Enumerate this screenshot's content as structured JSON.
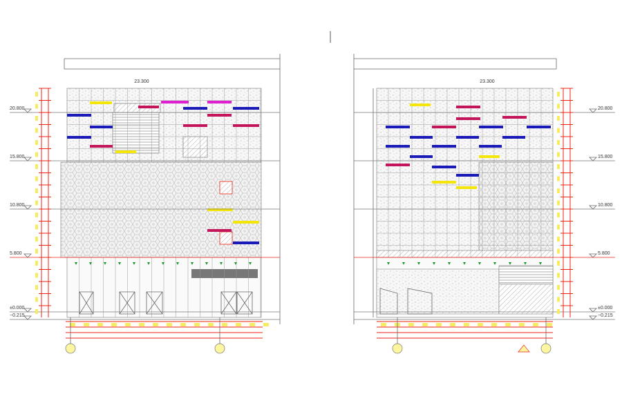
{
  "left_elevation": {
    "top_level": "23.300",
    "levels": [
      "20.800",
      "15.800",
      "10.800",
      "5.800",
      "±0.000",
      "−0.215"
    ]
  },
  "right_elevation": {
    "top_level": "23.300",
    "levels": [
      "20.800",
      "15.800",
      "10.800",
      "5.800",
      "±0.000",
      "−0.215"
    ]
  }
}
